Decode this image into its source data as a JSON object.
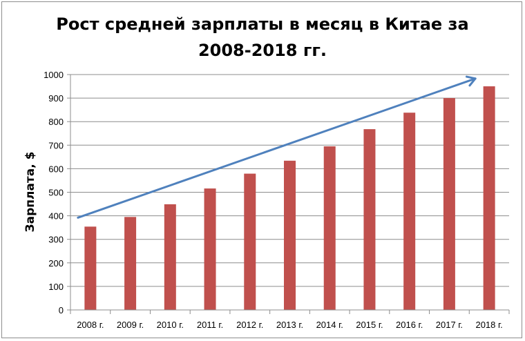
{
  "chart_data": {
    "type": "bar",
    "title_line1": "Рост средней зарплаты в месяц в Китае за",
    "title_line2": "2008-2018 гг.",
    "xlabel": "",
    "ylabel": "Зарплата, $",
    "categories": [
      "2008 г.",
      "2009 г.",
      "2010 г.",
      "2011 г.",
      "2012 г.",
      "2013 г.",
      "2014 г.",
      "2015 г.",
      "2016 г.",
      "2017 г.",
      "2018 г."
    ],
    "values": [
      354,
      395,
      449,
      516,
      579,
      634,
      695,
      768,
      838,
      900,
      950
    ],
    "ylim": [
      0,
      1000
    ],
    "yticks": [
      0,
      100,
      200,
      300,
      400,
      500,
      600,
      700,
      800,
      900,
      1000
    ],
    "grid": true,
    "legend": "none",
    "bar_color": "#c0504d",
    "trend_arrow": {
      "color": "#4f81bd",
      "from": [
        "2008 г.",
        392
      ],
      "to": [
        "2018 г.",
        983
      ]
    }
  }
}
